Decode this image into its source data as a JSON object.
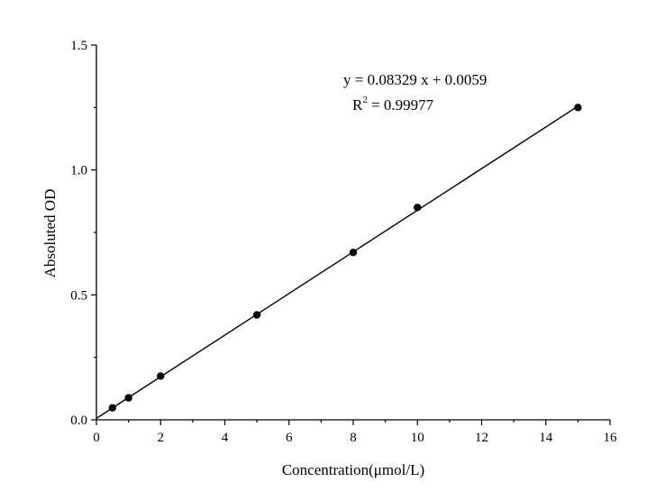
{
  "chart_data": {
    "type": "scatter",
    "xlabel": "Concentration(μmol/L)",
    "ylabel": "Absoluted OD",
    "xlim": [
      0,
      16
    ],
    "ylim": [
      0,
      1.5
    ],
    "x_ticks": [
      "0",
      "2",
      "4",
      "6",
      "8",
      "10",
      "12",
      "14",
      "16"
    ],
    "y_ticks": [
      "0.0",
      "0.5",
      "1.0",
      "1.5"
    ],
    "grid": false,
    "series": [
      {
        "x": [
          0.5,
          1,
          2,
          5,
          8,
          10,
          15
        ],
        "y": [
          0.048,
          0.088,
          0.175,
          0.42,
          0.67,
          0.85,
          1.25
        ]
      }
    ],
    "fit": {
      "slope": 0.08329,
      "intercept": 0.0059,
      "x_range": [
        0,
        15
      ]
    },
    "annotations": {
      "equation": "y = 0.08329 x + 0.0059",
      "r2_prefix": "R",
      "r2_sup": "2",
      "r2_suffix": " = 0.99977"
    },
    "colors": {
      "points": "#000000",
      "line": "#000000"
    }
  }
}
